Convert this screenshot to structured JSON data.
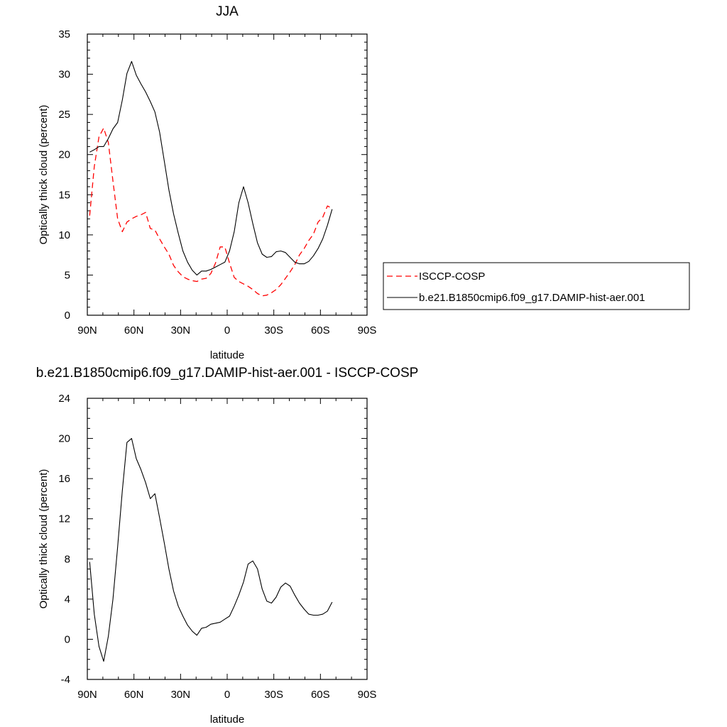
{
  "chart_data": [
    {
      "type": "line",
      "title": "JJA",
      "xlabel": "latitude",
      "ylabel": "Optically thick cloud (percent)",
      "xlim": [
        90,
        -90
      ],
      "ylim": [
        0,
        35
      ],
      "xticks": [
        90,
        60,
        30,
        0,
        -30,
        -60,
        -90
      ],
      "xtick_labels": [
        "90N",
        "60N",
        "30N",
        "0",
        "30S",
        "60S",
        "90S"
      ],
      "yticks": [
        0,
        5,
        10,
        15,
        20,
        25,
        30,
        35
      ],
      "ytick_labels": [
        "0",
        "5",
        "10",
        "15",
        "20",
        "25",
        "30",
        "35"
      ],
      "legend": {
        "placement": "right",
        "entries": [
          "ISCCP-COSP",
          "b.e21.B1850cmip6.f09_g17.DAMIP-hist-aer.001"
        ]
      },
      "series": [
        {
          "name": "ISCCP-COSP",
          "color": "#ff0000",
          "dash": "dashed",
          "x": [
            88.5,
            85.5,
            82.5,
            79.5,
            76.5,
            73.5,
            70.5,
            67.5,
            64.5,
            61.5,
            58.5,
            55.5,
            52.5,
            49.5,
            46.5,
            43.5,
            40.5,
            37.5,
            34.5,
            31.5,
            28.5,
            25.5,
            22.5,
            19.5,
            16.5,
            13.5,
            10.5,
            7.5,
            4.5,
            1.5,
            -1.5,
            -4.5,
            -7.5,
            -10.5,
            -13.5,
            -16.5,
            -19.5,
            -22.5,
            -25.5,
            -28.5,
            -31.5,
            -34.5,
            -37.5,
            -40.5,
            -43.5,
            -46.5,
            -49.5,
            -52.5,
            -55.5,
            -58.5,
            -61.5,
            -64.5,
            -67.5
          ],
          "values": [
            12.4,
            18.5,
            22.2,
            23.3,
            21.5,
            16.7,
            12.0,
            10.4,
            11.6,
            12.0,
            12.3,
            12.5,
            12.8,
            10.8,
            10.6,
            9.5,
            8.5,
            7.6,
            6.2,
            5.4,
            4.8,
            4.5,
            4.3,
            4.2,
            4.5,
            4.6,
            5.2,
            6.5,
            8.5,
            8.5,
            6.5,
            4.7,
            4.2,
            3.9,
            3.6,
            3.2,
            2.7,
            2.4,
            2.5,
            2.8,
            3.2,
            3.8,
            4.6,
            5.4,
            6.3,
            7.5,
            8.3,
            9.3,
            10.1,
            11.6,
            12.2,
            13.6,
            13.3
          ]
        },
        {
          "name": "b.e21.B1850cmip6.f09_g17.DAMIP-hist-aer.001",
          "color": "#000000",
          "dash": "solid",
          "x": [
            88.5,
            85.5,
            82.5,
            79.5,
            76.5,
            73.5,
            70.5,
            67.5,
            64.5,
            61.5,
            58.5,
            55.5,
            52.5,
            49.5,
            46.5,
            43.5,
            40.5,
            37.5,
            34.5,
            31.5,
            28.5,
            25.5,
            22.5,
            19.5,
            16.5,
            13.5,
            10.5,
            7.5,
            4.5,
            1.5,
            -1.5,
            -4.5,
            -7.5,
            -10.5,
            -13.5,
            -16.5,
            -19.5,
            -22.5,
            -25.5,
            -28.5,
            -31.5,
            -34.5,
            -37.5,
            -40.5,
            -43.5,
            -46.5,
            -49.5,
            -52.5,
            -55.5,
            -58.5,
            -61.5,
            -64.5,
            -67.5
          ],
          "values": [
            20.3,
            20.6,
            21.0,
            21.0,
            22.0,
            23.2,
            24.0,
            26.8,
            30.1,
            31.6,
            29.9,
            28.8,
            27.8,
            26.6,
            25.3,
            22.8,
            19.2,
            15.6,
            12.6,
            10.2,
            8.0,
            6.6,
            5.6,
            5.0,
            5.5,
            5.5,
            5.7,
            6.0,
            6.3,
            6.6,
            8.0,
            10.4,
            14.0,
            16.0,
            14.0,
            11.4,
            9.0,
            7.6,
            7.2,
            7.3,
            7.9,
            8.0,
            7.8,
            7.2,
            6.6,
            6.4,
            6.4,
            6.7,
            7.4,
            8.3,
            9.5,
            11.2,
            13.2
          ]
        }
      ]
    },
    {
      "type": "line",
      "title": "b.e21.B1850cmip6.f09_g17.DAMIP-hist-aer.001 - ISCCP-COSP",
      "xlabel": "latitude",
      "ylabel": "Optically thick cloud (percent)",
      "xlim": [
        90,
        -90
      ],
      "ylim": [
        -4,
        24
      ],
      "xticks": [
        90,
        60,
        30,
        0,
        -30,
        -60,
        -90
      ],
      "xtick_labels": [
        "90N",
        "60N",
        "30N",
        "0",
        "30S",
        "60S",
        "90S"
      ],
      "yticks": [
        -4,
        0,
        4,
        8,
        12,
        16,
        20,
        24
      ],
      "ytick_labels": [
        "-4",
        "0",
        "4",
        "8",
        "12",
        "16",
        "20",
        "24"
      ],
      "series": [
        {
          "color": "#000000",
          "dash": "solid",
          "x": [
            88.5,
            85.5,
            82.5,
            79.5,
            76.5,
            73.5,
            70.5,
            67.5,
            64.5,
            61.5,
            58.5,
            55.5,
            52.5,
            49.5,
            46.5,
            43.5,
            40.5,
            37.5,
            34.5,
            31.5,
            28.5,
            25.5,
            22.5,
            19.5,
            16.5,
            13.5,
            10.5,
            7.5,
            4.5,
            1.5,
            -1.5,
            -4.5,
            -7.5,
            -10.5,
            -13.5,
            -16.5,
            -19.5,
            -22.5,
            -25.5,
            -28.5,
            -31.5,
            -34.5,
            -37.5,
            -40.5,
            -43.5,
            -46.5,
            -49.5,
            -52.5,
            -55.5,
            -58.5,
            -61.5,
            -64.5,
            -67.5
          ],
          "values": [
            7.7,
            2.5,
            -0.7,
            -2.2,
            0.3,
            4.0,
            9.2,
            14.8,
            19.6,
            20.0,
            18.0,
            16.9,
            15.6,
            14.0,
            14.5,
            12.1,
            9.6,
            7.0,
            4.8,
            3.3,
            2.3,
            1.4,
            0.8,
            0.4,
            1.1,
            1.2,
            1.5,
            1.6,
            1.7,
            2.0,
            2.3,
            3.3,
            4.4,
            5.7,
            7.5,
            7.8,
            7.0,
            5.0,
            3.8,
            3.6,
            4.2,
            5.2,
            5.6,
            5.3,
            4.4,
            3.6,
            3.0,
            2.5,
            2.4,
            2.4,
            2.5,
            2.8,
            3.7
          ]
        }
      ]
    }
  ]
}
